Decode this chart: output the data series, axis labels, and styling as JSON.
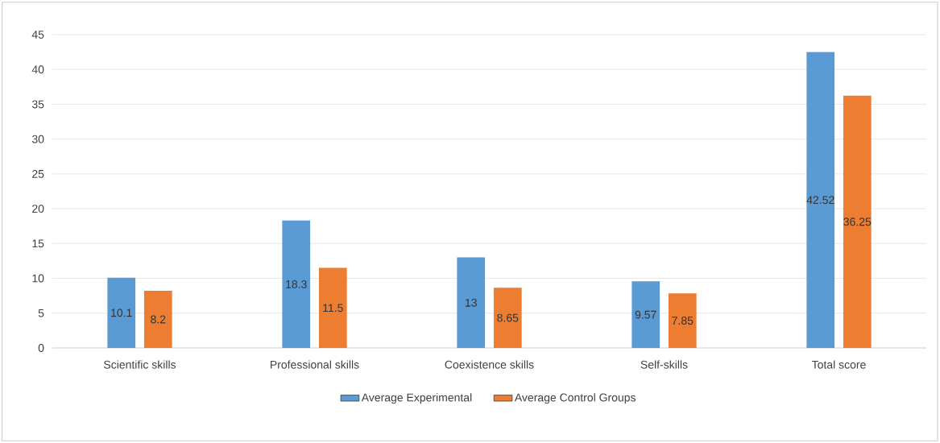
{
  "chart_data": {
    "type": "bar",
    "categories": [
      "Scientific skills",
      "Professional skills",
      "Coexistence skills",
      "Self-skills",
      "Total score"
    ],
    "series": [
      {
        "name": "Average Experimental",
        "color": "#5b9bd5",
        "values": [
          10.1,
          18.3,
          13,
          9.57,
          42.52
        ]
      },
      {
        "name": "Average Control Groups",
        "color": "#ed7d31",
        "values": [
          8.2,
          11.5,
          8.65,
          7.85,
          36.25
        ]
      }
    ],
    "ylim": [
      0,
      45
    ],
    "yticks": [
      0,
      5,
      10,
      15,
      20,
      25,
      30,
      35,
      40,
      45
    ],
    "grid": "y",
    "legend": "bottom",
    "data_labels": true
  }
}
